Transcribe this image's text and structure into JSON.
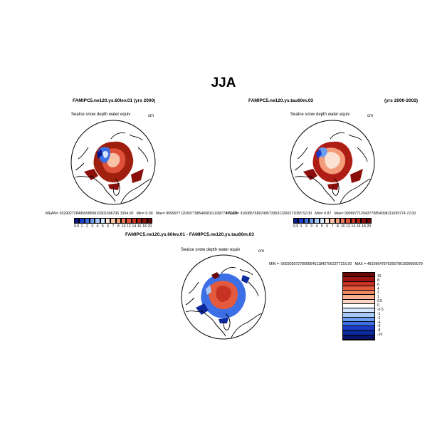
{
  "figure": {
    "title": "JJA"
  },
  "panels": [
    {
      "id": "panel-1",
      "case_label": "FAMIPC5.ne120.ys.60lev.01",
      "years_label": "(yrs 2000)",
      "variable_label": "SeaIce snow depth water equiv",
      "units": "cm",
      "mean_label": "MEAN=",
      "mean_value": "26290272849569869619301696706 1504.00",
      "min_label": "Min=",
      "min_value": "0.00",
      "max_label": "Max=",
      "max_value": "999997712043779854008111039774 72.00",
      "colorbar_ticks": [
        "0.5",
        "1",
        "2",
        "3",
        "4",
        "5",
        "6",
        "7",
        "8",
        "10",
        "12",
        "14",
        "16",
        "18",
        "20"
      ]
    },
    {
      "id": "panel-2",
      "case_label": "FAMIPC5.ne120.ys.tau60m.03",
      "years_label": "(yrs 2000-2002)",
      "variable_label": "SeaIce snow depth water equiv",
      "units": "cm",
      "mean_label": "MEAN=",
      "mean_value": "316085768974957336311260271083 52.00",
      "min_label": "Min=",
      "min_value": "0.87",
      "max_label": "Max=",
      "max_value": "999997712043779854008111039774 72.00",
      "colorbar_ticks": [
        "0.5",
        "1",
        "2",
        "3",
        "4",
        "5",
        "6",
        "7",
        "8",
        "10",
        "12",
        "14",
        "16",
        "18",
        "20"
      ]
    },
    {
      "id": "panel-diff",
      "case_label": "FAMIPC5.ne120.ys.60lev.01 - FAMIPC5.ne120.ys.tau60m.03",
      "variable_label": "SeaIce snow depth water equiv",
      "units": "cm",
      "min_label": "MIN =",
      "min_value": "-56930357278056545118427562377216.00",
      "max_label": "MAX =",
      "max_value": "481096478762657861909656579",
      "colorbar_ticks": [
        "10",
        "8",
        "6",
        "4",
        "2",
        "1",
        "0.5",
        "0",
        "-0.5",
        "-1",
        "-2",
        "-4",
        "-6",
        "-8",
        "-10"
      ]
    }
  ],
  "colors": {
    "abs_scale": [
      "#0a1a8c",
      "#1a3cc8",
      "#3c6ee6",
      "#6a9cf0",
      "#a8c8f8",
      "#d6e6fc",
      "#fbe2d2",
      "#f8c0a4",
      "#f49c7a",
      "#ec7656",
      "#de5038",
      "#c83222",
      "#ae1e14",
      "#8c0e0a",
      "#6a0606"
    ],
    "diff_scale": [
      "#6a0606",
      "#9c140e",
      "#c83222",
      "#e45a3e",
      "#f08866",
      "#f8b08e",
      "#fcd6c0",
      "#ffffff",
      "#d6e6fc",
      "#a8c8f8",
      "#6a9cf0",
      "#3c6ee6",
      "#1a3cc8",
      "#0c2a9c",
      "#0a1470"
    ]
  }
}
